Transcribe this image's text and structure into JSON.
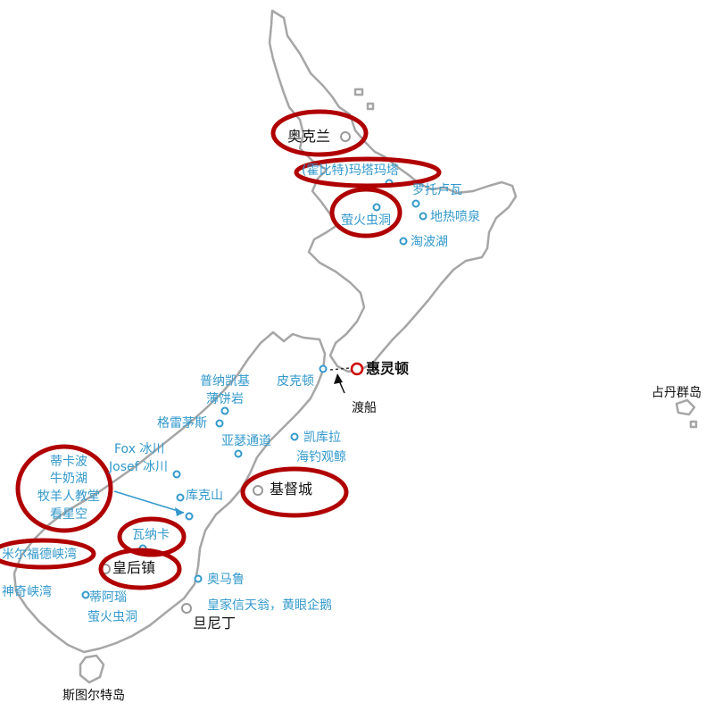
{
  "map": {
    "places": {
      "auckland": "奥克兰",
      "hobbiton": "(霍比特)玛塔玛塔",
      "rotorua": "罗托卢瓦",
      "waitomo": "萤火虫洞",
      "geothermal": "地热喷泉",
      "taupo": "淘波湖",
      "wellington": "惠灵顿",
      "picton": "皮克顿",
      "ferry": "渡船",
      "punakaiki_1": "普纳凯基",
      "punakaiki_2": "薄饼岩",
      "greymouth": "格雷茅斯",
      "arthurs_pass": "亚瑟通道",
      "kaikoura_1": "凯库拉",
      "kaikoura_2": "海钓观鲸",
      "fox_glacier": "Fox 冰川",
      "josef_glacier": "Josef 冰川",
      "tekapo_1": "蒂卡波",
      "tekapo_2": "牛奶湖",
      "tekapo_3": "牧羊人教堂",
      "tekapo_4": "看星空",
      "mt_cook": "库克山",
      "christchurch": "基督城",
      "wanaka": "瓦纳卡",
      "milford": "米尔福德峡湾",
      "queenstown": "皇后镇",
      "doubtful": "神奇峡湾",
      "te_anau_1": "蒂阿瑙",
      "te_anau_2": "萤火虫洞",
      "oamaru": "奥马鲁",
      "dunedin_attr": "皇家信天翁，黄眼企鹅",
      "dunedin": "旦尼丁",
      "stewart": "斯图尔特岛",
      "chatham": "占丹群岛"
    },
    "colors": {
      "coast": "#a6a6a6",
      "marker": "#3399cc",
      "highlight": "#b00000",
      "capital": "#cc0000"
    }
  }
}
